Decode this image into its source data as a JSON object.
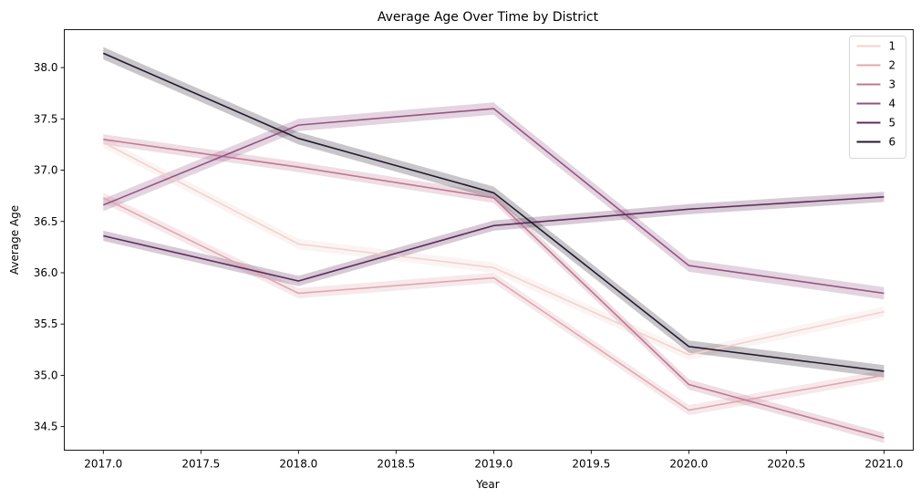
{
  "chart_data": {
    "type": "line",
    "title": "Average Age Over Time by District",
    "xlabel": "Year",
    "ylabel": "Average Age",
    "xlim": [
      2016.8,
      2021.15
    ],
    "ylim": [
      34.27,
      38.37
    ],
    "x_ticks": [
      2017.0,
      2017.5,
      2018.0,
      2018.5,
      2019.0,
      2019.5,
      2020.0,
      2020.5,
      2021.0
    ],
    "y_ticks": [
      34.5,
      35.0,
      35.5,
      36.0,
      36.5,
      37.0,
      37.5,
      38.0
    ],
    "x_tick_labels": [
      "2017.0",
      "2017.5",
      "2018.0",
      "2018.5",
      "2019.0",
      "2019.5",
      "2020.0",
      "2020.5",
      "2021.0"
    ],
    "y_tick_labels": [
      "34.5",
      "35.0",
      "35.5",
      "36.0",
      "36.5",
      "37.0",
      "37.5",
      "38.0"
    ],
    "x": [
      2017,
      2018,
      2019,
      2020,
      2021
    ],
    "grid": false,
    "legend_position": "top-right",
    "series": [
      {
        "name": "1",
        "color": "#f1d3ce",
        "values": [
          37.27,
          36.28,
          36.05,
          35.2,
          35.62
        ],
        "ci": 0.05
      },
      {
        "name": "2",
        "color": "#e0a8b0",
        "values": [
          36.73,
          35.8,
          35.95,
          34.66,
          35.0
        ],
        "ci": 0.05
      },
      {
        "name": "3",
        "color": "#bf7792",
        "values": [
          37.3,
          37.03,
          36.73,
          34.91,
          34.39
        ],
        "ci": 0.05
      },
      {
        "name": "4",
        "color": "#935483",
        "values": [
          36.66,
          37.44,
          37.6,
          36.07,
          35.8
        ],
        "ci": 0.06
      },
      {
        "name": "5",
        "color": "#5e2d5c",
        "values": [
          36.36,
          35.92,
          36.46,
          36.62,
          36.74
        ],
        "ci": 0.05
      },
      {
        "name": "6",
        "color": "#231b2d",
        "values": [
          38.14,
          37.31,
          36.78,
          35.28,
          35.04
        ],
        "ci": 0.06
      }
    ]
  }
}
